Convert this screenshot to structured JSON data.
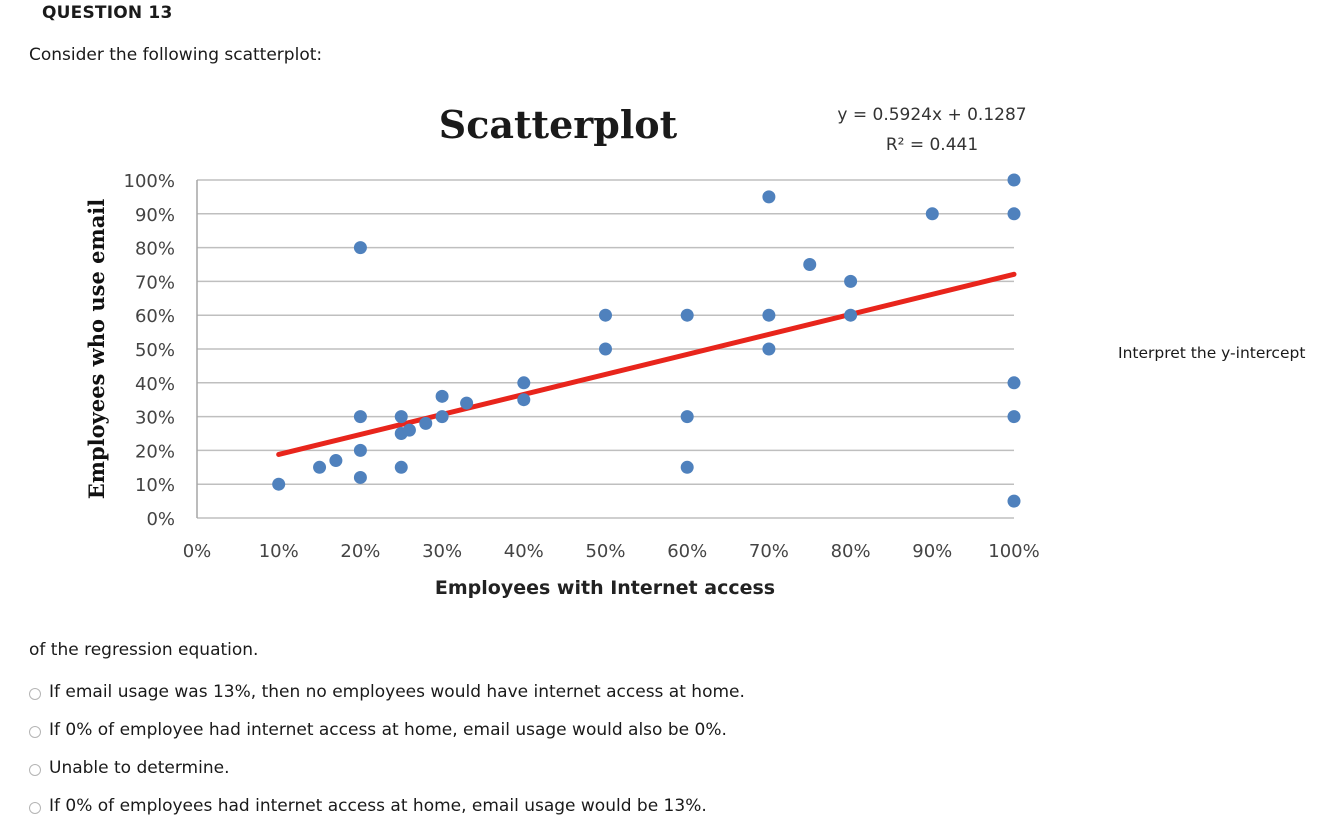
{
  "question": {
    "number_label": "QUESTION 13",
    "prompt": "Consider the following scatterplot:",
    "side_text": "Interpret the y-intercept",
    "continuation": "of the regression equation.",
    "options": [
      {
        "label": "If email usage was 13%, then no employees would have internet access at home.",
        "selected": false
      },
      {
        "label": "If 0% of employee had internet access at home, email usage would also be 0%.",
        "selected": false
      },
      {
        "label": "Unable to determine.",
        "selected": false
      },
      {
        "label": "If 0% of employees had internet access at home, email usage would be 13%.",
        "selected": false
      }
    ]
  },
  "chart_data": {
    "type": "scatter",
    "title": "Scatterplot",
    "xlabel": "Employees with Internet access",
    "ylabel": "Employees who use email",
    "xlim": [
      0,
      100
    ],
    "ylim": [
      0,
      100
    ],
    "x_ticks": [
      "0%",
      "10%",
      "20%",
      "30%",
      "40%",
      "50%",
      "60%",
      "70%",
      "80%",
      "90%",
      "100%"
    ],
    "y_ticks": [
      "0%",
      "10%",
      "20%",
      "30%",
      "40%",
      "50%",
      "60%",
      "70%",
      "80%",
      "90%",
      "100%"
    ],
    "grid": {
      "horizontal": true,
      "vertical": false
    },
    "legend": null,
    "annotation": {
      "equation": "y = 0.5924x + 0.1287",
      "r_squared": "R² = 0.441"
    },
    "trendline": {
      "slope": 0.5924,
      "intercept": 0.1287,
      "x_start": 10,
      "x_end": 100,
      "color": "#e8251c"
    },
    "marker_color": "#4f81bd",
    "points": [
      {
        "x": 10,
        "y": 10
      },
      {
        "x": 15,
        "y": 15
      },
      {
        "x": 17,
        "y": 17
      },
      {
        "x": 20,
        "y": 80
      },
      {
        "x": 20,
        "y": 30
      },
      {
        "x": 20,
        "y": 20
      },
      {
        "x": 20,
        "y": 12
      },
      {
        "x": 25,
        "y": 30
      },
      {
        "x": 25,
        "y": 25
      },
      {
        "x": 26,
        "y": 26
      },
      {
        "x": 25,
        "y": 15
      },
      {
        "x": 28,
        "y": 28
      },
      {
        "x": 30,
        "y": 36
      },
      {
        "x": 30,
        "y": 30
      },
      {
        "x": 33,
        "y": 34
      },
      {
        "x": 40,
        "y": 40
      },
      {
        "x": 40,
        "y": 35
      },
      {
        "x": 50,
        "y": 60
      },
      {
        "x": 50,
        "y": 50
      },
      {
        "x": 60,
        "y": 60
      },
      {
        "x": 60,
        "y": 30
      },
      {
        "x": 60,
        "y": 15
      },
      {
        "x": 70,
        "y": 95
      },
      {
        "x": 70,
        "y": 60
      },
      {
        "x": 70,
        "y": 50
      },
      {
        "x": 75,
        "y": 75
      },
      {
        "x": 80,
        "y": 70
      },
      {
        "x": 80,
        "y": 60
      },
      {
        "x": 90,
        "y": 90
      },
      {
        "x": 100,
        "y": 100
      },
      {
        "x": 100,
        "y": 90
      },
      {
        "x": 100,
        "y": 40
      },
      {
        "x": 100,
        "y": 30
      },
      {
        "x": 100,
        "y": 5
      }
    ]
  }
}
